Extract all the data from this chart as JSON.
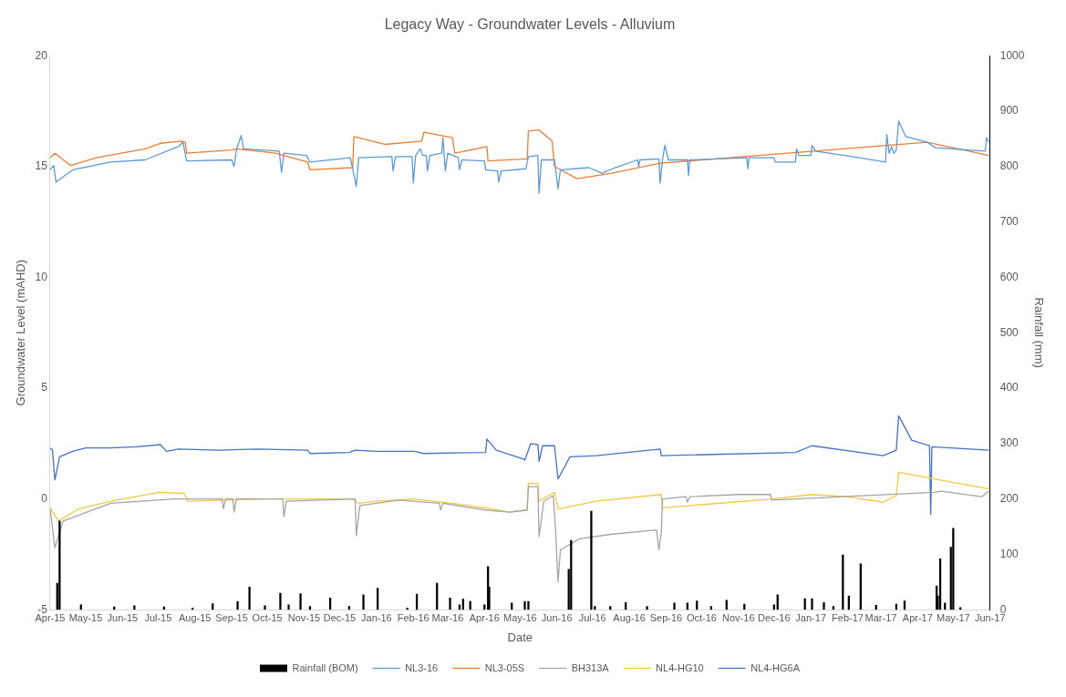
{
  "chart_data": {
    "type": "line",
    "title": "Legacy Way - Groundwater Levels - Alluvium",
    "xlabel": "Date",
    "ylabel": "Groundwater Level (mAHD)",
    "y2label": "Rainfall (mm)",
    "xlim": [
      "2015-04-01",
      "2017-06-01"
    ],
    "xticks": [
      {
        "value": "2015-04",
        "label": "Apr-15"
      },
      {
        "value": "2015-05",
        "label": "May-15"
      },
      {
        "value": "2015-06",
        "label": "Jun-15"
      },
      {
        "value": "2015-07",
        "label": "Jul-15"
      },
      {
        "value": "2015-08",
        "label": "Aug-15"
      },
      {
        "value": "2015-09",
        "label": "Sep-15"
      },
      {
        "value": "2015-10",
        "label": "Oct-15"
      },
      {
        "value": "2015-11",
        "label": "Nov-15"
      },
      {
        "value": "2015-12",
        "label": "Dec-15"
      },
      {
        "value": "2016-01",
        "label": "Jan-16"
      },
      {
        "value": "2016-02",
        "label": "Feb-16"
      },
      {
        "value": "2016-03",
        "label": "Mar-16"
      },
      {
        "value": "2016-04",
        "label": "Apr-16"
      },
      {
        "value": "2016-05",
        "label": "May-16"
      },
      {
        "value": "2016-06",
        "label": "Jun-16"
      },
      {
        "value": "2016-07",
        "label": "Jul-16"
      },
      {
        "value": "2016-08",
        "label": "Aug-16"
      },
      {
        "value": "2016-09",
        "label": "Sep-16"
      },
      {
        "value": "2016-10",
        "label": "Oct-16"
      },
      {
        "value": "2016-11",
        "label": "Nov-16"
      },
      {
        "value": "2016-12",
        "label": "Dec-16"
      },
      {
        "value": "2017-01",
        "label": "Jan-17"
      },
      {
        "value": "2017-02",
        "label": "Feb-17"
      },
      {
        "value": "2017-03",
        "label": "Mar-17"
      },
      {
        "value": "2017-04",
        "label": "Apr-17"
      },
      {
        "value": "2017-05",
        "label": "May-17"
      },
      {
        "value": "2017-06",
        "label": "Jun-17"
      }
    ],
    "ylim": [
      -5,
      20
    ],
    "yticks": [
      -5,
      0,
      5,
      10,
      15,
      20
    ],
    "y2lim": [
      0,
      1000
    ],
    "y2ticks": [
      0,
      100,
      200,
      300,
      400,
      500,
      600,
      700,
      800,
      900,
      1000
    ],
    "legend": "bottom",
    "marker": "none",
    "line_style": "solid",
    "series": [
      {
        "name": "Rainfall (BOM)",
        "type": "bar",
        "axis": "y2",
        "color": "#000000",
        "x": [
          "2015-04-07",
          "2015-04-09",
          "2015-04-27",
          "2015-05-25",
          "2015-06-11",
          "2015-07-06",
          "2015-07-30",
          "2015-08-16",
          "2015-09-06",
          "2015-09-16",
          "2015-09-29",
          "2015-10-12",
          "2015-10-19",
          "2015-10-29",
          "2015-11-06",
          "2015-11-23",
          "2015-12-09",
          "2015-12-21",
          "2016-01-02",
          "2016-01-27",
          "2016-02-04",
          "2016-02-21",
          "2016-03-03",
          "2016-03-11",
          "2016-03-14",
          "2016-03-20",
          "2016-04-01",
          "2016-04-04",
          "2016-04-05",
          "2016-04-24",
          "2016-05-05",
          "2016-05-08",
          "2016-06-11",
          "2016-06-13",
          "2016-06-30",
          "2016-07-03",
          "2016-07-16",
          "2016-07-29",
          "2016-08-16",
          "2016-09-08",
          "2016-09-19",
          "2016-09-27",
          "2016-10-09",
          "2016-10-22",
          "2016-11-06",
          "2016-12-01",
          "2016-12-04",
          "2016-12-27",
          "2017-01-02",
          "2017-01-12",
          "2017-01-20",
          "2017-01-28",
          "2017-02-02",
          "2017-02-12",
          "2017-02-25",
          "2017-03-14",
          "2017-03-21",
          "2017-04-17",
          "2017-04-18",
          "2017-04-20",
          "2017-04-24",
          "2017-04-29",
          "2017-05-01",
          "2017-05-07"
        ],
        "values": [
          48,
          160,
          9,
          5,
          7,
          5,
          3,
          11,
          15,
          41,
          7,
          30,
          9,
          29,
          6,
          21,
          6,
          27,
          39,
          3,
          28,
          48,
          21,
          9,
          19,
          15,
          9,
          78,
          41,
          12,
          15,
          15,
          73,
          125,
          178,
          6,
          6,
          13,
          6,
          12,
          12,
          16,
          6,
          17,
          10,
          9,
          27,
          20,
          20,
          13,
          6,
          99,
          25,
          83,
          8,
          10,
          16,
          43,
          25,
          92,
          12,
          113,
          147,
          4
        ]
      },
      {
        "name": "NL3-16",
        "color": "#5b9bd5",
        "x": [
          "2015-04-01",
          "2015-04-04",
          "2015-04-06",
          "2015-04-20",
          "2015-05-22",
          "2015-06-20",
          "2015-07-18",
          "2015-07-22",
          "2015-07-25",
          "2015-09-01",
          "2015-09-03",
          "2015-09-05",
          "2015-09-09",
          "2015-09-11",
          "2015-10-11",
          "2015-10-13",
          "2015-10-15",
          "2015-11-03",
          "2015-11-06",
          "2015-12-10",
          "2015-12-15",
          "2015-12-17",
          "2016-01-14",
          "2016-01-15",
          "2016-01-17",
          "2016-01-31",
          "2016-02-01",
          "2016-02-03",
          "2016-02-07",
          "2016-02-09",
          "2016-02-12",
          "2016-02-13",
          "2016-02-15",
          "2016-02-25",
          "2016-02-26",
          "2016-02-28",
          "2016-03-01",
          "2016-03-10",
          "2016-03-11",
          "2016-03-13",
          "2016-04-01",
          "2016-04-02",
          "2016-04-12",
          "2016-04-13",
          "2016-04-15",
          "2016-05-06",
          "2016-05-08",
          "2016-05-16",
          "2016-05-17",
          "2016-05-19",
          "2016-05-30",
          "2016-06-02",
          "2016-06-04",
          "2016-06-28",
          "2016-07-09",
          "2016-07-20",
          "2016-08-08",
          "2016-08-09",
          "2016-08-10",
          "2016-08-26",
          "2016-08-27",
          "2016-08-29",
          "2016-08-31",
          "2016-09-03",
          "2016-09-19",
          "2016-09-20",
          "2016-09-21",
          "2016-11-08",
          "2016-11-09",
          "2016-11-10",
          "2016-12-01",
          "2016-12-02",
          "2016-12-19",
          "2016-12-20",
          "2016-12-22",
          "2017-01-01",
          "2017-01-02",
          "2017-01-05",
          "2017-02-05",
          "2017-03-05",
          "2017-03-06",
          "2017-03-08",
          "2017-03-10",
          "2017-03-12",
          "2017-03-14",
          "2017-03-16",
          "2017-03-22",
          "2017-04-09",
          "2017-04-16",
          "2017-05-28",
          "2017-05-29",
          "2017-05-31"
        ],
        "values": [
          14.85,
          15.05,
          14.3,
          14.85,
          15.2,
          15.3,
          15.9,
          16.1,
          15.25,
          15.3,
          15.0,
          15.75,
          16.4,
          15.8,
          15.7,
          14.75,
          15.6,
          15.5,
          15.2,
          15.4,
          14.1,
          15.4,
          15.45,
          14.8,
          15.45,
          15.45,
          14.25,
          15.5,
          15.8,
          15.5,
          15.5,
          14.8,
          15.5,
          15.6,
          16.3,
          14.8,
          15.6,
          15.4,
          14.85,
          15.3,
          15.25,
          14.85,
          14.8,
          14.3,
          14.8,
          14.9,
          15.45,
          15.5,
          13.8,
          15.3,
          15.3,
          14.0,
          14.85,
          14.95,
          14.7,
          14.95,
          15.3,
          15.0,
          15.3,
          15.35,
          14.25,
          15.3,
          15.95,
          15.3,
          15.3,
          14.6,
          15.3,
          15.4,
          14.9,
          15.4,
          15.4,
          15.2,
          15.2,
          15.8,
          15.5,
          15.5,
          15.95,
          15.7,
          15.45,
          15.2,
          16.45,
          15.6,
          15.9,
          15.6,
          15.75,
          17.05,
          16.35,
          16.1,
          15.85,
          15.7,
          16.3,
          16.1
        ]
      },
      {
        "name": "NL3-05S",
        "color": "#ed7d31",
        "x": [
          "2015-04-01",
          "2015-04-05",
          "2015-04-18",
          "2015-05-10",
          "2015-06-20",
          "2015-07-03",
          "2015-07-21",
          "2015-07-24",
          "2015-07-25",
          "2015-09-01",
          "2015-09-05",
          "2015-10-08",
          "2015-11-04",
          "2015-11-06",
          "2015-12-12",
          "2015-12-13",
          "2016-01-08",
          "2016-02-08",
          "2016-02-10",
          "2016-03-05",
          "2016-03-07",
          "2016-04-03",
          "2016-04-04",
          "2016-05-07",
          "2016-05-08",
          "2016-05-17",
          "2016-05-28",
          "2016-05-30",
          "2016-06-18",
          "2016-07-17",
          "2016-08-27",
          "2017-04-09",
          "2017-05-31"
        ],
        "values": [
          15.4,
          15.6,
          15.05,
          15.4,
          15.8,
          16.05,
          16.15,
          16.1,
          15.6,
          15.75,
          15.8,
          15.6,
          15.2,
          14.85,
          14.95,
          16.35,
          16.0,
          16.15,
          16.55,
          16.3,
          15.6,
          15.9,
          15.25,
          15.35,
          16.6,
          16.65,
          16.15,
          15.0,
          14.45,
          14.7,
          15.15,
          16.1,
          15.5
        ]
      },
      {
        "name": "BH313A",
        "color": "#a5a5a5",
        "x": [
          "2015-04-01",
          "2015-04-05",
          "2015-04-12",
          "2015-05-22",
          "2015-07-15",
          "2015-08-24",
          "2015-08-25",
          "2015-08-27",
          "2015-09-02",
          "2015-09-03",
          "2015-09-05",
          "2015-10-14",
          "2015-10-15",
          "2015-10-17",
          "2015-12-14",
          "2015-12-15",
          "2015-12-18",
          "2016-01-20",
          "2016-02-23",
          "2016-02-24",
          "2016-02-26",
          "2016-04-02",
          "2016-04-22",
          "2016-05-07",
          "2016-05-08",
          "2016-05-16",
          "2016-05-17",
          "2016-05-21",
          "2016-05-29",
          "2016-05-31",
          "2016-06-02",
          "2016-06-04",
          "2016-06-20",
          "2016-07-16",
          "2016-08-24",
          "2016-08-26",
          "2016-08-28",
          "2016-08-29",
          "2016-09-18",
          "2016-09-19",
          "2016-09-21",
          "2016-11-01",
          "2016-11-28",
          "2016-11-29",
          "2017-04-15",
          "2017-04-21",
          "2017-05-05",
          "2017-05-25",
          "2017-05-31"
        ],
        "values": [
          -0.45,
          -2.2,
          -1.0,
          -0.2,
          0.0,
          0.0,
          -0.45,
          0.0,
          0.0,
          -0.6,
          0.0,
          0.0,
          -0.8,
          -0.1,
          0.0,
          -1.65,
          -0.3,
          -0.05,
          -0.2,
          -0.5,
          -0.2,
          -0.5,
          -0.6,
          -0.5,
          0.55,
          0.55,
          -1.7,
          -0.1,
          0.15,
          -1.5,
          -3.75,
          -2.3,
          -1.8,
          -1.6,
          -1.4,
          -2.3,
          -1.5,
          0.0,
          0.1,
          -0.15,
          0.1,
          0.2,
          0.2,
          -0.05,
          0.3,
          0.35,
          0.25,
          0.1,
          0.35
        ]
      },
      {
        "name": "NL4-HG10",
        "color": "#f5c842",
        "x": [
          "2015-04-01",
          "2015-04-08",
          "2015-04-25",
          "2015-05-22",
          "2015-07-02",
          "2015-07-23",
          "2015-07-26",
          "2015-10-01",
          "2015-12-12",
          "2015-12-17",
          "2016-01-01",
          "2016-02-01",
          "2016-03-05",
          "2016-04-02",
          "2016-04-22",
          "2016-05-07",
          "2016-05-08",
          "2016-05-16",
          "2016-05-17",
          "2016-05-30",
          "2016-06-02",
          "2016-07-04",
          "2016-08-28",
          "2016-08-29",
          "2016-11-30",
          "2017-01-02",
          "2017-01-31",
          "2017-03-03",
          "2017-03-14",
          "2017-03-16",
          "2017-05-31"
        ],
        "values": [
          -0.4,
          -1.0,
          -0.45,
          -0.1,
          0.3,
          0.25,
          -0.1,
          0.0,
          0.0,
          -0.2,
          -0.1,
          0.0,
          -0.2,
          -0.4,
          -0.6,
          -0.5,
          0.7,
          0.7,
          -0.1,
          0.3,
          -0.45,
          -0.1,
          0.2,
          -0.4,
          0.0,
          0.2,
          0.1,
          -0.15,
          0.15,
          1.2,
          0.45
        ]
      },
      {
        "name": "NL4-HG6A",
        "color": "#4472c4",
        "x": [
          "2015-04-01",
          "2015-04-03",
          "2015-04-05",
          "2015-04-09",
          "2015-04-20",
          "2015-05-01",
          "2015-05-21",
          "2015-06-13",
          "2015-07-03",
          "2015-07-08",
          "2015-07-18",
          "2015-08-22",
          "2015-09-23",
          "2015-11-04",
          "2015-11-06",
          "2015-12-09",
          "2015-12-14",
          "2016-01-02",
          "2016-02-02",
          "2016-02-10",
          "2016-04-02",
          "2016-04-03",
          "2016-04-11",
          "2016-05-04",
          "2016-05-05",
          "2016-05-10",
          "2016-05-16",
          "2016-05-17",
          "2016-05-20",
          "2016-05-30",
          "2016-06-02",
          "2016-06-12",
          "2016-07-04",
          "2016-08-27",
          "2016-08-28",
          "2016-12-19",
          "2017-01-02",
          "2017-03-03",
          "2017-03-14",
          "2017-03-16",
          "2017-03-27",
          "2017-04-11",
          "2017-04-12",
          "2017-04-13",
          "2017-05-31"
        ],
        "values": [
          2.3,
          2.2,
          0.85,
          1.9,
          2.15,
          2.3,
          2.3,
          2.35,
          2.45,
          2.15,
          2.25,
          2.2,
          2.25,
          2.2,
          2.05,
          2.1,
          2.2,
          2.15,
          2.15,
          2.05,
          2.1,
          2.7,
          2.2,
          1.8,
          1.75,
          2.5,
          2.45,
          1.7,
          2.4,
          2.4,
          0.9,
          1.9,
          1.95,
          2.25,
          1.95,
          2.1,
          2.4,
          1.95,
          2.2,
          3.75,
          2.65,
          2.4,
          -0.7,
          2.35,
          2.2
        ]
      }
    ]
  }
}
